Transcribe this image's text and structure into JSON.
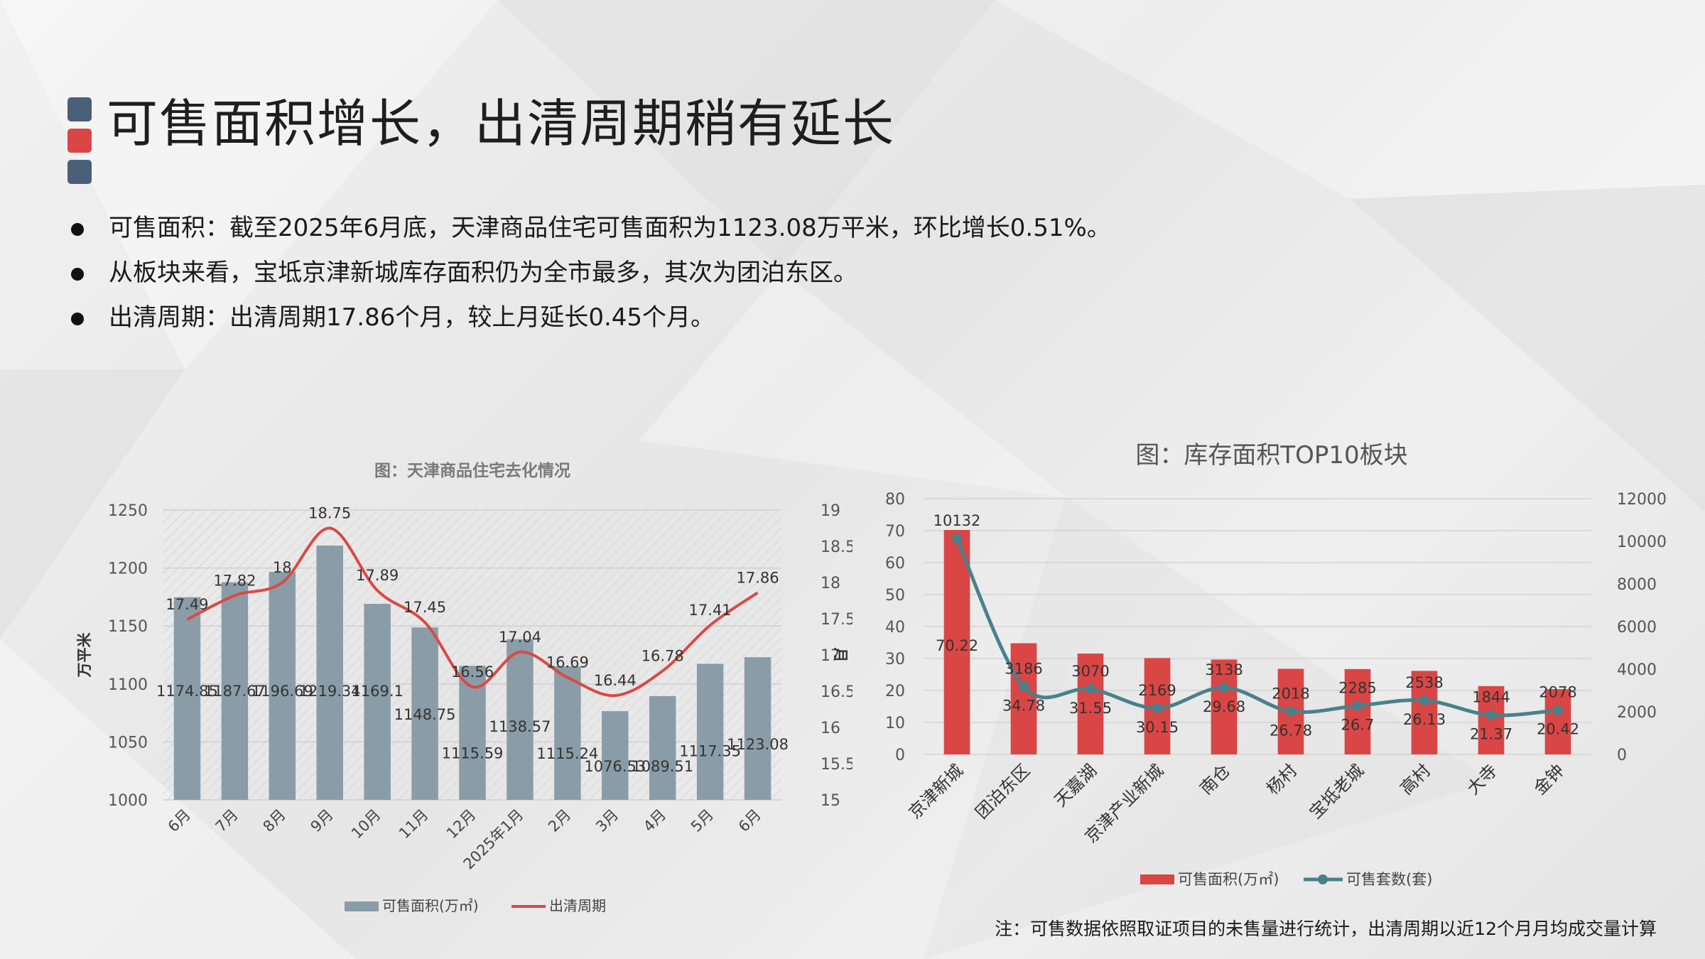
{
  "page": {
    "title": "可售面积增长，出清周期稍有延长",
    "bullets": [
      "可售面积：截至2025年6月底，天津商品住宅可售面积为1123.08万平米，环比增长0.51%。",
      "从板块来看，宝坻京津新城库存面积仍为全市最多，其次为团泊东区。",
      "出清周期：出清周期17.86个月，较上月延长0.45个月。"
    ],
    "footnote": "注：可售数据依照取证项目的未售量进行统计，出清周期以近12个月月均成交量计算",
    "colors": {
      "marker_dark": "#4a5f78",
      "marker_red": "#d94645"
    }
  },
  "chart_data": [
    {
      "type": "bar",
      "title": "图：天津商品住宅去化情况",
      "categories": [
        "6月",
        "7月",
        "8月",
        "9月",
        "10月",
        "11月",
        "12月",
        "2025年1月",
        "2月",
        "3月",
        "4月",
        "5月",
        "6月"
      ],
      "series": [
        {
          "name": "可售面积(万㎡)",
          "type": "bar",
          "axis": "left",
          "color": "#8a9ca8",
          "values": [
            1174.85,
            1187.67,
            1196.69,
            1219.34,
            1169.1,
            1148.75,
            1115.59,
            1138.57,
            1115.24,
            1076.53,
            1089.51,
            1117.35,
            1123.08
          ],
          "labels": [
            "1174.85",
            "1187.67",
            "1196.69",
            "1219.34",
            "1169.1",
            "1148.75",
            "1115.59",
            "1138.57",
            "1115.24",
            "1076.53",
            "1089.51",
            "1117.35",
            "1123.08"
          ]
        },
        {
          "name": "出清周期",
          "type": "line",
          "axis": "right",
          "color": "#d94a45",
          "values": [
            17.49,
            17.82,
            18,
            18.75,
            17.89,
            17.45,
            16.56,
            17.04,
            16.69,
            16.44,
            16.78,
            17.41,
            17.86
          ],
          "labels": [
            "17.49",
            "17.82",
            "18",
            "18.75",
            "17.89",
            "17.45",
            "16.56",
            "17.04",
            "16.69",
            "16.44",
            "16.78",
            "17.41",
            "17.86"
          ]
        }
      ],
      "ylabel": "万平米",
      "y2label": "月",
      "ylim": [
        1000,
        1250
      ],
      "yticks": [
        "1000",
        "1050",
        "1100",
        "1150",
        "1200",
        "1250"
      ],
      "y2lim": [
        15,
        19
      ],
      "y2ticks": [
        "15",
        "15.5",
        "16",
        "16.5",
        "17",
        "17.5",
        "18",
        "18.5",
        "19"
      ],
      "legend": [
        "可售面积(万㎡)",
        "出清周期"
      ],
      "legend_position": "bottom",
      "grid": true
    },
    {
      "type": "bar",
      "title": "图：库存面积TOP10板块",
      "categories": [
        "京津新城",
        "团泊东区",
        "天嘉湖",
        "京津产业新城",
        "南仓",
        "杨村",
        "宝坻老城",
        "高村",
        "大寺",
        "金钟"
      ],
      "series": [
        {
          "name": "可售面积(万㎡)",
          "type": "bar",
          "axis": "left",
          "color": "#d94645",
          "values": [
            70.22,
            34.78,
            31.55,
            30.15,
            29.68,
            26.78,
            26.7,
            26.13,
            21.37,
            20.42
          ],
          "labels": [
            "70.22",
            "34.78",
            "31.55",
            "30.15",
            "29.68",
            "26.78",
            "26.7",
            "26.13",
            "21.37",
            "20.42"
          ]
        },
        {
          "name": "可售套数(套)",
          "type": "line",
          "axis": "right",
          "color": "#4a8089",
          "values": [
            10132,
            3186,
            3070,
            2169,
            3138,
            2018,
            2285,
            2538,
            1844,
            2078
          ],
          "labels": [
            "10132",
            "3186",
            "3070",
            "2169",
            "3138",
            "2018",
            "2285",
            "2538",
            "1844",
            "2078"
          ]
        }
      ],
      "ylim": [
        0,
        80
      ],
      "yticks": [
        "0",
        "10",
        "20",
        "30",
        "40",
        "50",
        "60",
        "70",
        "80"
      ],
      "y2lim": [
        0,
        12000
      ],
      "y2ticks": [
        "0",
        "2000",
        "4000",
        "6000",
        "8000",
        "10000",
        "12000"
      ],
      "legend": [
        "可售面积(万㎡)",
        "可售套数(套)"
      ],
      "legend_position": "bottom",
      "grid": true
    }
  ]
}
